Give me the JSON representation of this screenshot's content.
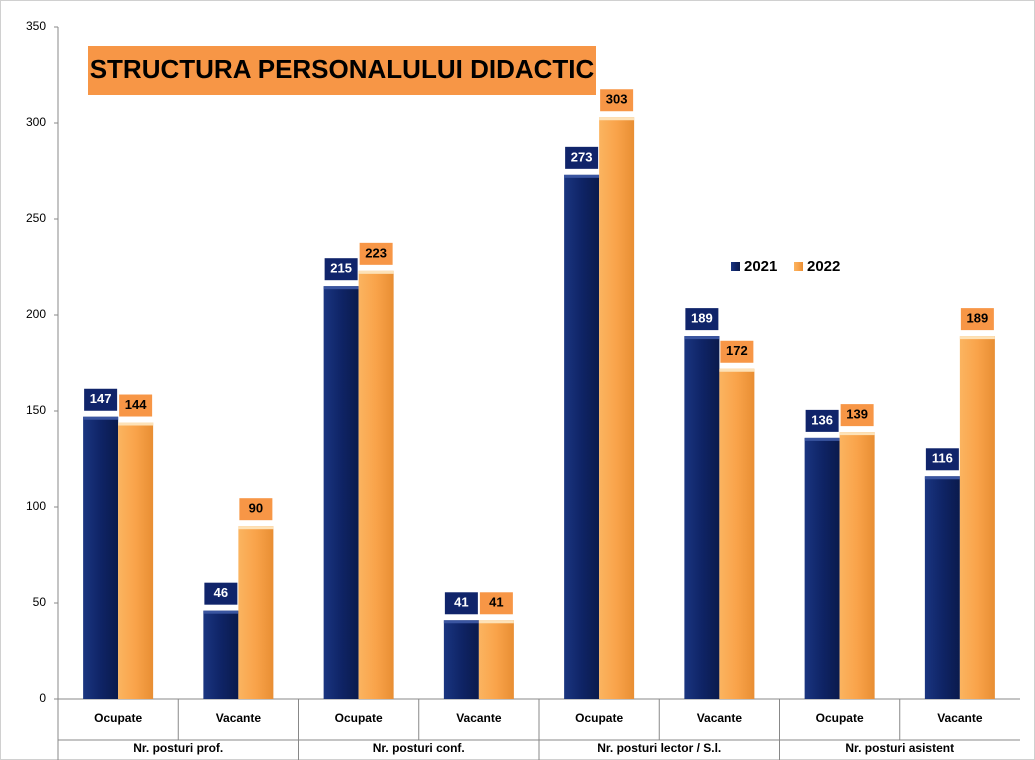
{
  "chart_data": {
    "type": "bar",
    "title": "STRUCTURA  PERSONALULUI  DIDACTIC",
    "categories": [
      "Ocupate",
      "Vacante",
      "Ocupate",
      "Vacante",
      "Ocupate",
      "Vacante",
      "Ocupate",
      "Vacante"
    ],
    "category_groups": [
      "Nr. posturi prof.",
      "Nr. posturi conf.",
      "Nr. posturi lector / S.l.",
      "Nr. posturi asistent"
    ],
    "series": [
      {
        "name": "2021",
        "color": "#10246a",
        "values": [
          147,
          46,
          215,
          41,
          273,
          189,
          136,
          116
        ]
      },
      {
        "name": "2022",
        "color": "#f9a34a",
        "values": [
          144,
          90,
          223,
          41,
          303,
          172,
          139,
          189
        ]
      }
    ],
    "ylim": [
      0,
      350
    ],
    "yticks": [
      0,
      50,
      100,
      150,
      200,
      250,
      300,
      350
    ],
    "grid": false
  }
}
